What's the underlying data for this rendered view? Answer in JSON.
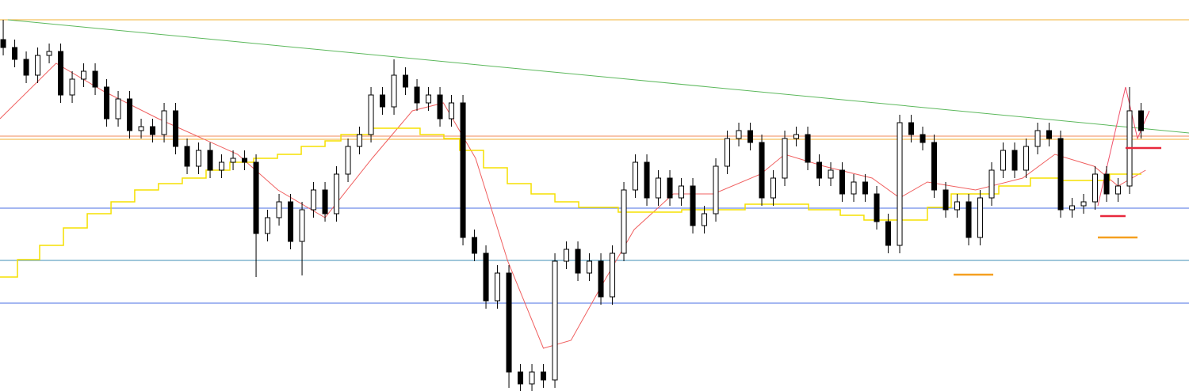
{
  "chart_data": {
    "type": "candlestick",
    "ylim": [
      0,
      494
    ],
    "xlim": [
      -0.28,
      103.17
    ],
    "up_color": "#ffffff",
    "down_color": "#000000",
    "open": [
      444,
      434,
      419,
      399,
      424,
      429,
      374,
      394,
      404,
      384,
      344,
      369,
      329,
      334,
      324,
      354,
      309,
      284,
      304,
      279,
      289,
      294,
      289,
      199,
      219,
      239,
      189,
      229,
      254,
      224,
      274,
      309,
      324,
      374,
      359,
      399,
      384,
      364,
      374,
      344,
      364,
      194,
      174,
      114,
      149,
      24,
      9,
      24,
      14,
      164,
      179,
      149,
      164,
      119,
      174,
      254,
      289,
      244,
      269,
      244,
      259,
      209,
      224,
      284,
      319,
      329,
      314,
      244,
      269,
      319,
      324,
      289,
      269,
      279,
      249,
      264,
      249,
      214,
      184,
      339,
      324,
      314,
      254,
      229,
      239,
      194,
      244,
      279,
      304,
      279,
      309,
      329,
      319,
      229,
      234,
      239,
      274,
      249,
      259,
      354
    ],
    "high": [
      469,
      444,
      429,
      434,
      439,
      439,
      404,
      414,
      414,
      394,
      379,
      379,
      344,
      344,
      364,
      364,
      319,
      314,
      314,
      299,
      304,
      304,
      299,
      229,
      249,
      249,
      239,
      264,
      264,
      284,
      319,
      334,
      384,
      384,
      419,
      409,
      394,
      384,
      384,
      374,
      374,
      204,
      184,
      159,
      159,
      34,
      34,
      34,
      174,
      189,
      189,
      174,
      174,
      184,
      264,
      299,
      299,
      279,
      279,
      269,
      269,
      234,
      294,
      329,
      339,
      339,
      324,
      279,
      329,
      334,
      334,
      299,
      289,
      289,
      274,
      274,
      259,
      224,
      349,
      349,
      334,
      324,
      264,
      249,
      249,
      254,
      289,
      314,
      314,
      319,
      339,
      339,
      329,
      244,
      249,
      284,
      284,
      269,
      384,
      364
    ],
    "low": [
      424,
      409,
      389,
      389,
      414,
      364,
      364,
      384,
      374,
      334,
      334,
      319,
      319,
      314,
      314,
      299,
      274,
      274,
      269,
      269,
      279,
      279,
      144,
      189,
      209,
      179,
      146,
      219,
      214,
      214,
      264,
      299,
      314,
      349,
      349,
      374,
      354,
      354,
      334,
      334,
      184,
      164,
      104,
      104,
      4,
      0,
      0,
      4,
      4,
      154,
      139,
      139,
      109,
      109,
      164,
      244,
      234,
      234,
      234,
      234,
      199,
      199,
      214,
      274,
      309,
      304,
      234,
      234,
      259,
      309,
      279,
      259,
      259,
      239,
      239,
      239,
      204,
      174,
      174,
      314,
      304,
      244,
      219,
      219,
      184,
      184,
      234,
      269,
      269,
      269,
      299,
      309,
      219,
      219,
      224,
      229,
      239,
      239,
      249,
      319
    ],
    "close": [
      434,
      419,
      399,
      424,
      429,
      374,
      394,
      404,
      384,
      344,
      369,
      329,
      334,
      324,
      354,
      309,
      284,
      304,
      279,
      289,
      294,
      289,
      199,
      219,
      239,
      189,
      229,
      254,
      224,
      274,
      309,
      324,
      374,
      359,
      399,
      384,
      364,
      374,
      344,
      364,
      194,
      174,
      114,
      149,
      24,
      9,
      24,
      14,
      164,
      179,
      149,
      164,
      119,
      174,
      254,
      289,
      244,
      269,
      244,
      259,
      209,
      224,
      284,
      319,
      329,
      314,
      244,
      269,
      319,
      324,
      289,
      269,
      279,
      249,
      264,
      249,
      214,
      184,
      339,
      324,
      314,
      254,
      229,
      239,
      194,
      244,
      279,
      304,
      279,
      309,
      329,
      319,
      229,
      234,
      239,
      274,
      249,
      259,
      354,
      329
    ],
    "levels": [
      {
        "value": 469,
        "color": "#f2b233"
      },
      {
        "value": 322,
        "color": "#f08a5a"
      },
      {
        "value": 318,
        "color": "#f2b233"
      },
      {
        "value": 231,
        "color": "#4a6fe3"
      },
      {
        "value": 165,
        "color": "#3f8fb5"
      },
      {
        "value": 111,
        "color": "#4a6fe3"
      }
    ],
    "overlays": [
      {
        "type": "line",
        "color": "#5cb85c",
        "x": [
          0.4,
          103.2
        ],
        "values": [
          469,
          326
        ]
      },
      {
        "type": "line",
        "color": "#f06060",
        "x": [
          -0.28,
          4.6,
          8.7,
          13.5,
          20.4,
          23.9,
          28,
          32.1,
          35.6,
          38.3,
          41.1,
          43.9,
          47,
          49.4,
          52.1,
          54.9,
          58.3,
          61.8,
          65.9,
          68,
          71.4,
          75.6,
          78,
          80.4,
          84.6,
          88.7,
          91.5,
          94.9,
          97,
          99.4
        ],
        "values": [
          344,
          414,
          379,
          344,
          299,
          254,
          219,
          294,
          354,
          364,
          294,
          164,
          54,
          64,
          134,
          204,
          249,
          249,
          274,
          299,
          284,
          269,
          244,
          264,
          254,
          269,
          299,
          284,
          259,
          279
        ]
      },
      {
        "type": "step",
        "color": "#f5e000",
        "x": [
          -0.28,
          1.24,
          3.17,
          5.24,
          7.31,
          9.38,
          11.44,
          13.51,
          15.58,
          17.65,
          19.72,
          21.79,
          23.86,
          25.93,
          28.0,
          29.38,
          32.13,
          36.27,
          38.34,
          39.72,
          41.79,
          43.86,
          45.93,
          48.0,
          50.07,
          53.51,
          59.03,
          64.55,
          70.07,
          72.83,
          74.89,
          80.41,
          82.48,
          86.62,
          89.37,
          92.13,
          96.27,
          99.03
        ],
        "values": [
          144,
          166,
          184,
          206,
          224,
          239,
          254,
          262,
          269,
          279,
          289,
          294,
          299,
          309,
          316,
          324,
          332,
          324,
          319,
          304,
          282,
          262,
          249,
          239,
          232,
          226,
          229,
          236,
          229,
          222,
          216,
          232,
          249,
          259,
          269,
          266,
          274,
          274
        ]
      },
      {
        "type": "line",
        "color": "#f0506a",
        "x": [
          95.24,
          97.65,
          98.69,
          99.72
        ],
        "values": [
          234,
          384,
          319,
          354
        ]
      },
      {
        "type": "segment",
        "color": "#e8283c",
        "x": [
          97.65,
          100.76
        ],
        "values": [
          307,
          307
        ]
      },
      {
        "type": "segment",
        "color": "#e8283c",
        "x": [
          95.45,
          97.65
        ],
        "values": [
          221,
          221
        ]
      },
      {
        "type": "segment",
        "color": "#f5a020",
        "x": [
          95.24,
          98.69
        ],
        "values": [
          194,
          194
        ]
      },
      {
        "type": "segment",
        "color": "#f5a020",
        "x": [
          82.69,
          86.14
        ],
        "values": [
          147,
          147
        ]
      }
    ]
  }
}
